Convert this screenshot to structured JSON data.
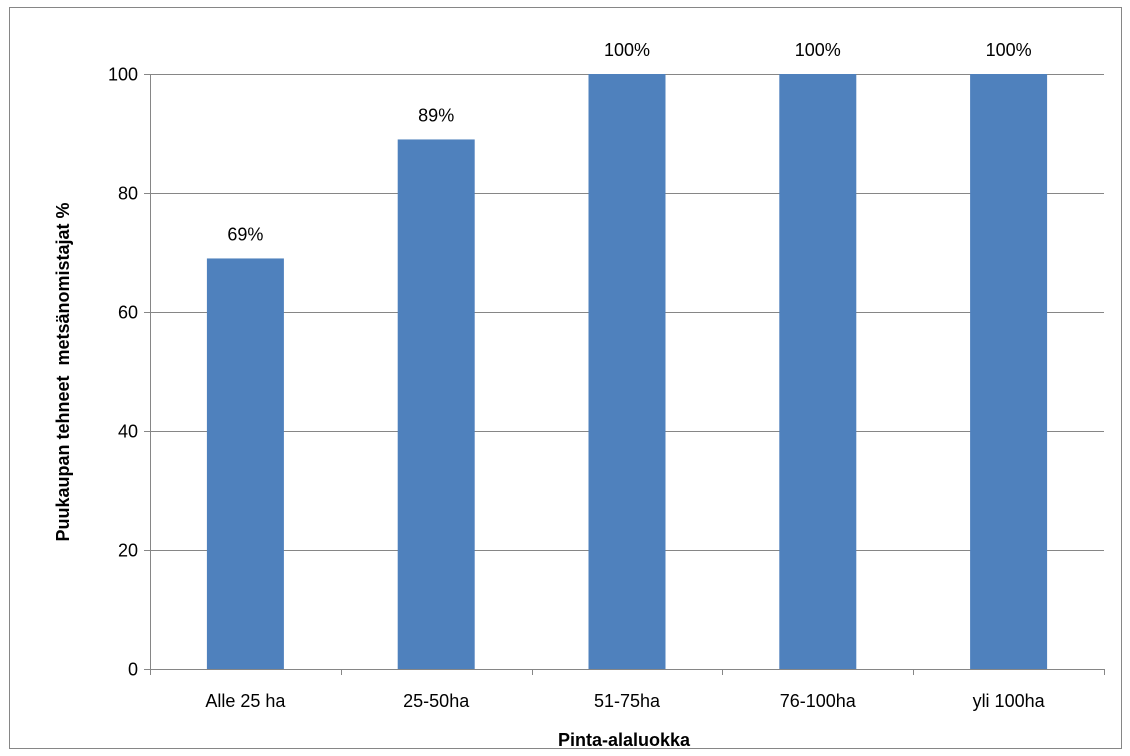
{
  "chart_data": {
    "type": "bar",
    "title": "",
    "xlabel": "Pinta-alaluokka",
    "ylabel": "Puukaupan tehneet  metsänomistajat %",
    "categories": [
      "Alle 25 ha",
      "25-50ha",
      "51-75ha",
      "76-100ha",
      "yli 100ha"
    ],
    "values": [
      69,
      89,
      100,
      100,
      100
    ],
    "data_labels": [
      "69%",
      "89%",
      "100%",
      "100%",
      "100%"
    ],
    "ylim": [
      0,
      100
    ],
    "yticks": [
      0,
      20,
      40,
      60,
      80,
      100
    ],
    "ytick_labels": [
      "0",
      "20",
      "40",
      "60",
      "80",
      "100"
    ],
    "grid": true,
    "legend": "none",
    "bar_color": "#4F81BD",
    "gridline_color": "#868686"
  }
}
